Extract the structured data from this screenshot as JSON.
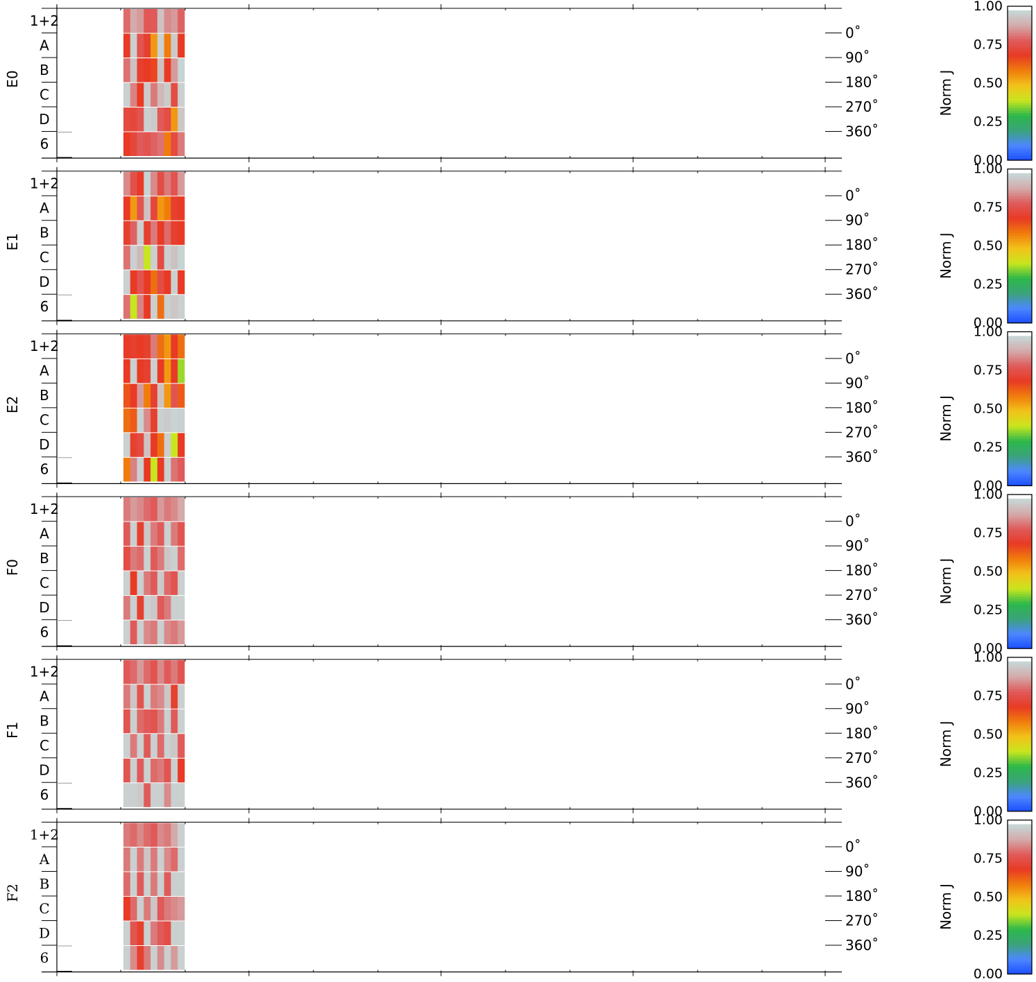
{
  "chart_data": {
    "type": "heatmap",
    "colorbar": {
      "label": "Norm J",
      "ticks": [
        "0.00",
        "0.25",
        "0.50",
        "0.75",
        "1.00"
      ],
      "range": [
        0,
        1
      ],
      "colors": [
        "#1a4dff",
        "#4d88ff",
        "#3aa37a",
        "#2db84a",
        "#c8e61e",
        "#f2c21a",
        "#f07c0c",
        "#e83a24",
        "#e05a5a",
        "#d4aaaa",
        "#c7d8d8"
      ]
    },
    "angle_labels": [
      "0˚",
      "90˚",
      "180˚",
      "270˚",
      "360˚"
    ],
    "row_labels": [
      "1+2",
      "A",
      "B",
      "C",
      "D",
      "6"
    ],
    "panels": [
      {
        "label": "E0",
        "rows": [
          [
            0.82,
            0.9,
            0.88,
            0.79,
            0.8,
            0.95,
            0.86,
            0.88,
            0.81
          ],
          [
            0.7,
            0.98,
            0.78,
            0.72,
            0.56,
            0.98,
            0.6,
            0.97,
            0.7
          ],
          [
            0.83,
            0.95,
            0.72,
            0.7,
            0.68,
            0.95,
            0.7,
            0.88,
            0.99
          ],
          [
            0.98,
            0.85,
            0.7,
            0.97,
            0.84,
            0.93,
            0.97,
            0.76,
            0.98
          ],
          [
            0.75,
            0.74,
            0.78,
            0.98,
            0.97,
            0.8,
            0.76,
            0.56,
            0.96
          ],
          [
            0.7,
            0.74,
            0.8,
            0.78,
            0.81,
            0.83,
            0.6,
            0.75,
            0.84
          ]
        ]
      },
      {
        "label": "E1",
        "rows": [
          [
            0.86,
            0.77,
            0.7,
            0.99,
            0.86,
            0.76,
            0.84,
            0.78,
            0.88
          ],
          [
            0.7,
            0.56,
            0.78,
            0.95,
            0.74,
            0.56,
            0.6,
            0.72,
            0.7
          ],
          [
            0.72,
            0.81,
            0.98,
            0.72,
            0.84,
            0.7,
            0.82,
            0.72,
            0.7
          ],
          [
            0.83,
            0.98,
            0.93,
            0.4,
            0.98,
            0.76,
            0.98,
            0.95,
            0.99
          ],
          [
            0.98,
            0.7,
            0.78,
            0.7,
            0.62,
            0.76,
            0.7,
            0.98,
            0.7
          ],
          [
            0.83,
            0.4,
            0.85,
            0.7,
            0.98,
            0.62,
            0.98,
            0.96,
            0.98
          ]
        ]
      },
      {
        "label": "E2",
        "rows": [
          [
            0.7,
            0.72,
            0.7,
            0.72,
            0.84,
            0.62,
            0.56,
            0.7,
            0.62
          ],
          [
            0.7,
            0.98,
            0.7,
            0.72,
            0.98,
            0.7,
            0.56,
            0.7,
            0.37
          ],
          [
            0.66,
            0.7,
            0.88,
            0.6,
            0.72,
            0.95,
            0.56,
            0.78,
            0.65
          ],
          [
            0.62,
            0.65,
            0.98,
            0.86,
            0.72,
            0.98,
            0.97,
            0.99,
            0.98
          ],
          [
            0.98,
            0.72,
            0.75,
            0.95,
            0.7,
            0.62,
            0.98,
            0.4,
            0.7
          ],
          [
            0.6,
            0.85,
            0.98,
            0.7,
            0.4,
            0.7,
            0.98,
            0.83,
            0.8
          ]
        ]
      },
      {
        "label": "F0",
        "rows": [
          [
            0.84,
            0.88,
            0.86,
            0.82,
            0.8,
            0.88,
            0.84,
            0.86,
            0.9
          ],
          [
            0.8,
            0.98,
            0.72,
            0.96,
            0.84,
            0.8,
            0.98,
            0.84,
            0.78
          ],
          [
            0.76,
            0.84,
            0.82,
            0.98,
            0.8,
            0.84,
            0.96,
            0.98,
            0.82
          ],
          [
            0.98,
            0.7,
            0.98,
            0.84,
            0.8,
            0.97,
            0.82,
            0.78,
            0.98
          ],
          [
            0.84,
            0.98,
            0.72,
            0.98,
            0.96,
            0.8,
            0.84,
            0.98,
            0.98
          ],
          [
            0.98,
            0.8,
            0.98,
            0.86,
            0.84,
            0.98,
            0.86,
            0.84,
            0.88
          ]
        ]
      },
      {
        "label": "F1",
        "rows": [
          [
            0.8,
            0.82,
            0.88,
            0.82,
            0.78,
            0.86,
            0.8,
            0.84,
            0.78
          ],
          [
            0.84,
            0.96,
            0.78,
            0.98,
            0.84,
            0.86,
            0.96,
            0.72,
            0.98
          ],
          [
            0.78,
            0.98,
            0.82,
            0.8,
            0.78,
            0.84,
            0.98,
            0.8,
            0.98
          ],
          [
            0.98,
            0.84,
            0.98,
            0.8,
            0.98,
            0.82,
            0.98,
            0.96,
            0.8
          ],
          [
            0.78,
            0.98,
            0.8,
            0.98,
            0.82,
            0.84,
            0.78,
            0.98,
            0.7
          ],
          [
            0.98,
            0.98,
            0.97,
            0.8,
            0.98,
            0.98,
            0.86,
            0.98,
            0.98
          ]
        ]
      },
      {
        "label": "F2",
        "rows": [
          [
            0.84,
            0.82,
            0.86,
            0.82,
            0.8,
            0.86,
            0.84,
            0.9,
            0.98
          ],
          [
            0.84,
            0.98,
            0.84,
            0.96,
            0.84,
            0.98,
            0.86,
            0.82,
            0.98
          ],
          [
            0.82,
            0.98,
            0.8,
            0.98,
            0.84,
            0.98,
            0.8,
            0.98,
            0.98
          ],
          [
            0.7,
            0.82,
            0.98,
            0.84,
            0.96,
            0.8,
            0.84,
            0.86,
            0.88
          ],
          [
            0.98,
            0.78,
            0.72,
            0.98,
            0.84,
            0.8,
            0.76,
            0.98,
            0.98
          ],
          [
            0.98,
            0.86,
            0.72,
            0.84,
            0.98,
            0.86,
            0.98,
            0.88,
            0.98
          ]
        ]
      }
    ]
  }
}
